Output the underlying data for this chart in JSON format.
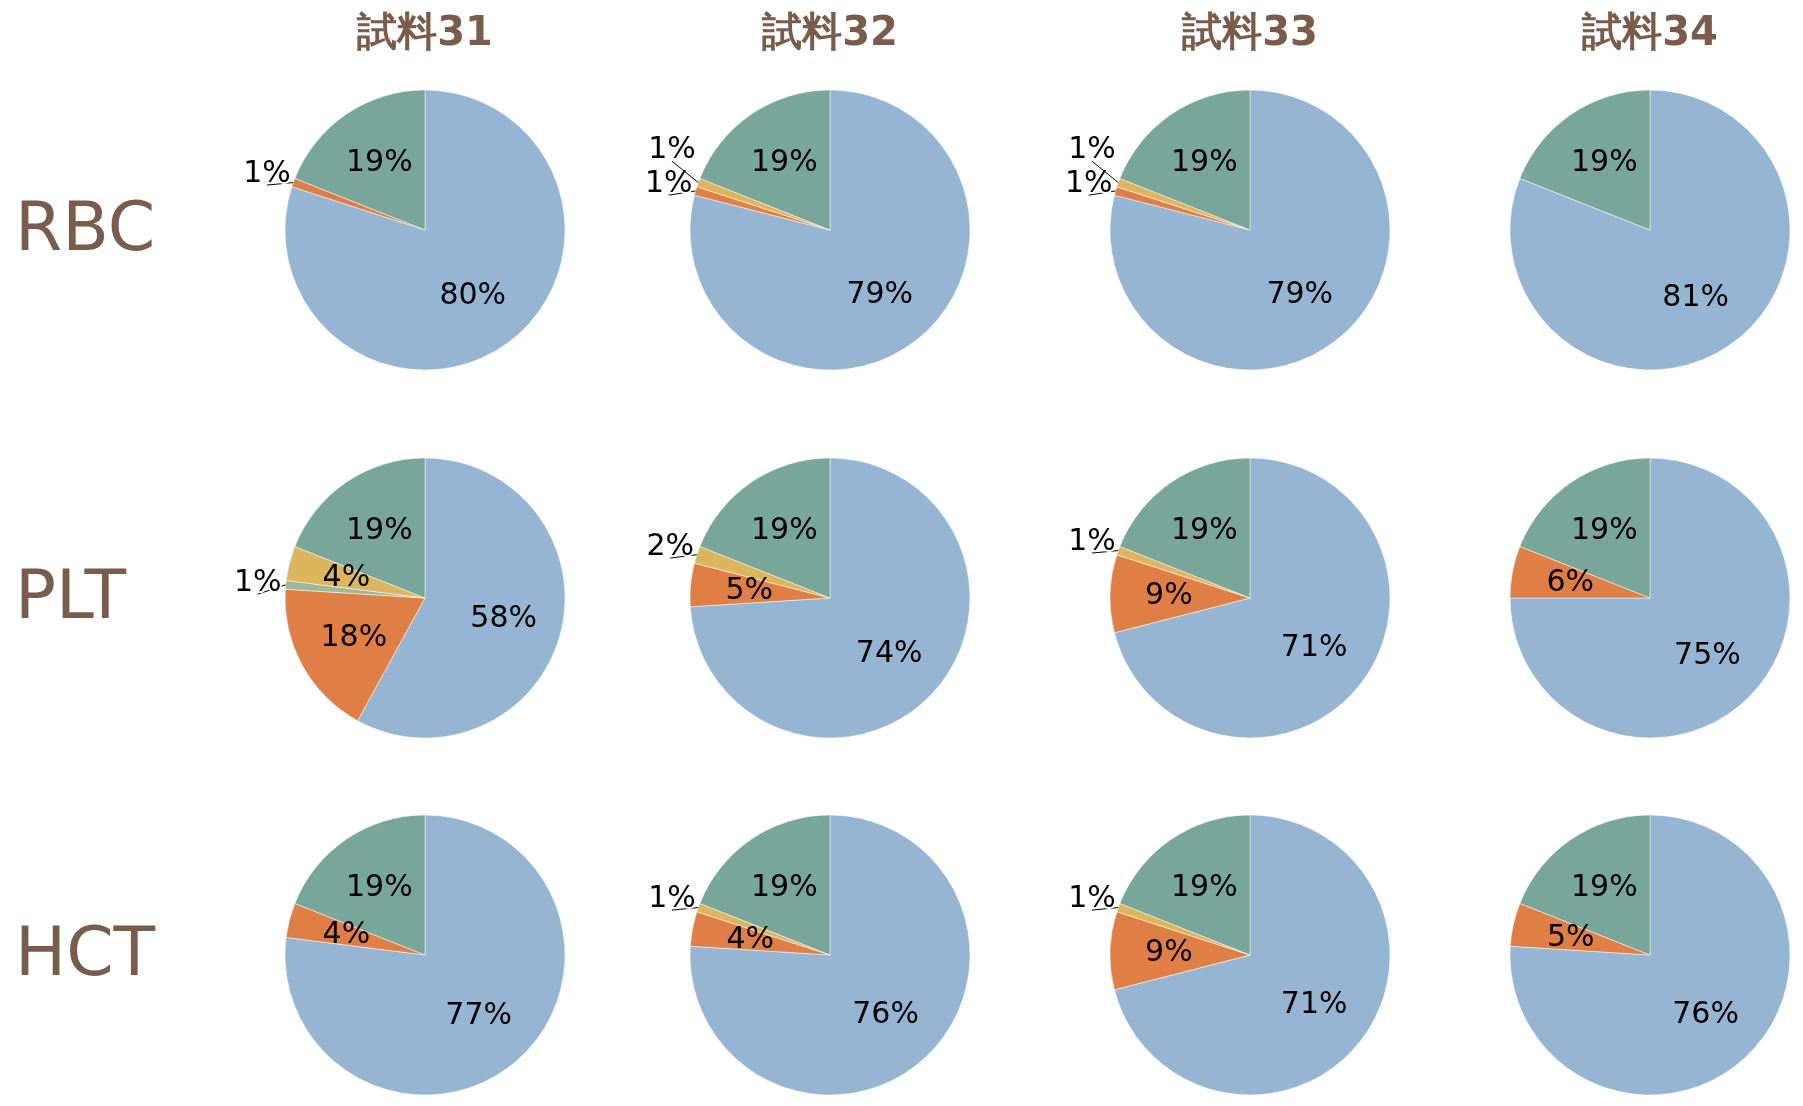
{
  "chart_data": [
    {
      "type": "pie",
      "title": "試料31",
      "ylabel": "RBC",
      "categories": [
        null,
        null,
        null
      ],
      "values": [
        80,
        1,
        19
      ],
      "colors": [
        "#95b5d3",
        "#df7f45",
        "#79a69a"
      ],
      "value_labels": [
        "80%",
        "1%",
        "19%"
      ]
    },
    {
      "type": "pie",
      "title": "試料32",
      "categories": [
        null,
        null,
        null,
        null
      ],
      "values": [
        79,
        1,
        1,
        19
      ],
      "colors": [
        "#95b5d3",
        "#df7f45",
        "#dcb55c",
        "#79a69a"
      ],
      "value_labels": [
        "79%",
        "1%",
        "1%",
        "19%"
      ]
    },
    {
      "type": "pie",
      "title": "試料33",
      "categories": [
        null,
        null,
        null,
        null
      ],
      "values": [
        79,
        1,
        1,
        19
      ],
      "colors": [
        "#95b5d3",
        "#df7f45",
        "#dcb55c",
        "#79a69a"
      ],
      "value_labels": [
        "79%",
        "1%",
        "1%",
        "19%"
      ]
    },
    {
      "type": "pie",
      "title": "試料34",
      "categories": [
        null,
        null
      ],
      "values": [
        81,
        19
      ],
      "colors": [
        "#95b5d3",
        "#79a69a"
      ],
      "value_labels": [
        "81%",
        "19%"
      ]
    },
    {
      "type": "pie",
      "ylabel": "PLT",
      "categories": [
        null,
        null,
        null,
        null,
        null
      ],
      "values": [
        58,
        18,
        1,
        4,
        19
      ],
      "colors": [
        "#95b5d3",
        "#df7f45",
        "#9fb89a",
        "#dcb55c",
        "#79a69a"
      ],
      "value_labels": [
        "58%",
        "18%",
        "1%",
        "4%",
        "19%"
      ]
    },
    {
      "type": "pie",
      "categories": [
        null,
        null,
        null,
        null
      ],
      "values": [
        74,
        5,
        2,
        19
      ],
      "colors": [
        "#95b5d3",
        "#df7f45",
        "#dcb55c",
        "#79a69a"
      ],
      "value_labels": [
        "74%",
        "5%",
        "2%",
        "19%"
      ]
    },
    {
      "type": "pie",
      "categories": [
        null,
        null,
        null,
        null
      ],
      "values": [
        71,
        9,
        1,
        19
      ],
      "colors": [
        "#95b5d3",
        "#df7f45",
        "#dcb55c",
        "#79a69a"
      ],
      "value_labels": [
        "71%",
        "9%",
        "1%",
        "19%"
      ]
    },
    {
      "type": "pie",
      "categories": [
        null,
        null,
        null
      ],
      "values": [
        75,
        6,
        19
      ],
      "colors": [
        "#95b5d3",
        "#df7f45",
        "#79a69a"
      ],
      "value_labels": [
        "75%",
        "6%",
        "19%"
      ]
    },
    {
      "type": "pie",
      "ylabel": "HCT",
      "categories": [
        null,
        null,
        null
      ],
      "values": [
        77,
        4,
        19
      ],
      "colors": [
        "#95b5d3",
        "#df7f45",
        "#79a69a"
      ],
      "value_labels": [
        "77%",
        "4%",
        "19%"
      ]
    },
    {
      "type": "pie",
      "categories": [
        null,
        null,
        null,
        null
      ],
      "values": [
        76,
        4,
        1,
        19
      ],
      "colors": [
        "#95b5d3",
        "#df7f45",
        "#dcb55c",
        "#79a69a"
      ],
      "value_labels": [
        "76%",
        "4%",
        "1%",
        "19%"
      ]
    },
    {
      "type": "pie",
      "categories": [
        null,
        null,
        null,
        null
      ],
      "values": [
        71,
        9,
        1,
        19
      ],
      "colors": [
        "#95b5d3",
        "#df7f45",
        "#dcb55c",
        "#79a69a"
      ],
      "value_labels": [
        "71%",
        "9%",
        "1%",
        "19%"
      ]
    },
    {
      "type": "pie",
      "categories": [
        null,
        null,
        null
      ],
      "values": [
        76,
        5,
        19
      ],
      "colors": [
        "#95b5d3",
        "#df7f45",
        "#79a69a"
      ],
      "value_labels": [
        "76%",
        "5%",
        "19%"
      ]
    }
  ]
}
